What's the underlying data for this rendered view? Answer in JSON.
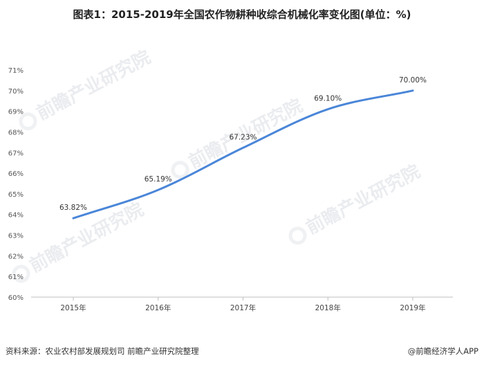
{
  "title": "图表1：2015-2019年全国农作物耕种收综合机械化率变化图(单位：%)",
  "footer": {
    "source": "资料来源：农业农村部发展规划司 前瞻产业研究院整理",
    "brand": "@前瞻经济学人APP"
  },
  "watermark": "前瞻产业研究院",
  "chart_data": {
    "type": "line",
    "categories": [
      "2015年",
      "2016年",
      "2017年",
      "2018年",
      "2019年"
    ],
    "series": [
      {
        "values": [
          63.82,
          65.19,
          67.23,
          69.1,
          70.0
        ],
        "color": "#4a86d8"
      }
    ],
    "data_labels": [
      "63.82%",
      "65.19%",
      "67.23%",
      "69.10%",
      "70.00%"
    ],
    "y_ticks": [
      "60%",
      "61%",
      "62%",
      "63%",
      "64%",
      "65%",
      "66%",
      "67%",
      "68%",
      "69%",
      "70%",
      "71%"
    ],
    "ylim": [
      60,
      71
    ],
    "grid": false,
    "legend": "none"
  }
}
